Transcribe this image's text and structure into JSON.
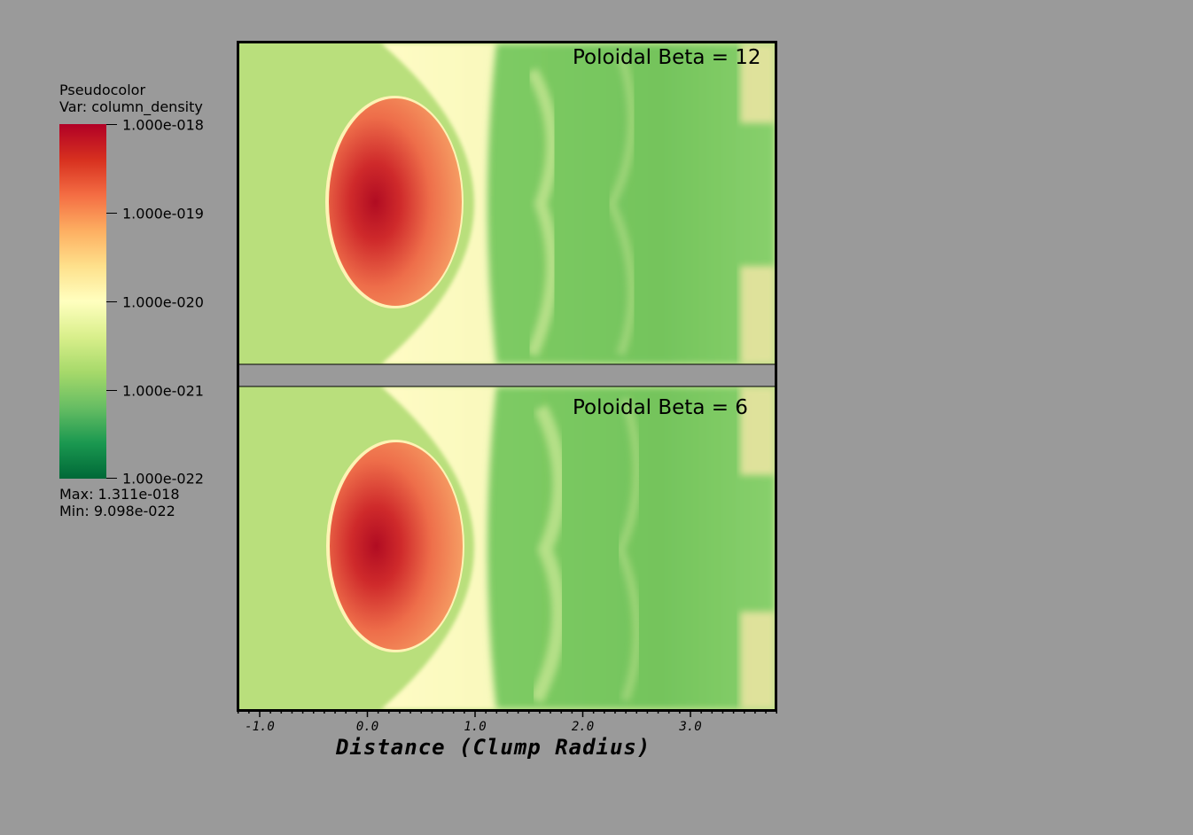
{
  "legend": {
    "plot_type": "Pseudocolor",
    "variable": "Var: column_density",
    "tick_labels": [
      "1.000e-018",
      "1.000e-019",
      "1.000e-020",
      "1.000e-021",
      "1.000e-022"
    ],
    "max_label": "Max:  1.311e-018",
    "min_label": "Min:  9.098e-022",
    "colormap": [
      "#b10026",
      "#d7301f",
      "#f46d43",
      "#fdae61",
      "#fee08b",
      "#ffffbf",
      "#d9ef8b",
      "#a6d96a",
      "#66bd63",
      "#1a9850",
      "#006837"
    ]
  },
  "panels": [
    {
      "title": "Poloidal Beta = 12"
    },
    {
      "title": "Poloidal Beta =  6"
    }
  ],
  "chart_data": {
    "type": "heatmap",
    "variable": "column_density",
    "scale": "log",
    "colorbar_range": [
      1e-22,
      1e-18
    ],
    "data_max": 1.311e-18,
    "data_min": 9.098e-22,
    "xlabel": "Distance (Clump Radius)",
    "xlim": [
      -1.2,
      3.8
    ],
    "xticks": [
      -1.0,
      0.0,
      1.0,
      2.0,
      3.0
    ],
    "xtick_labels": [
      "-1.0",
      "0.0",
      "1.0",
      "2.0",
      "3.0"
    ],
    "panels": [
      {
        "title": "Poloidal Beta = 12",
        "peak_x": 0.05
      },
      {
        "title": "Poloidal Beta =  6",
        "peak_x": 0.05
      }
    ]
  }
}
